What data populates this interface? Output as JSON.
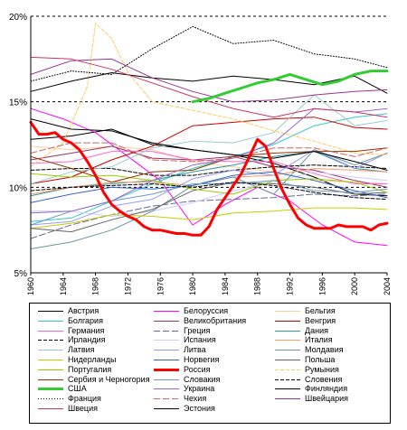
{
  "chart_data": {
    "type": "line",
    "title": "",
    "xlabel": "",
    "ylabel": "",
    "xlim": [
      1960,
      2004
    ],
    "ylim": [
      5,
      20
    ],
    "y_ticks": [
      "5%",
      "10%",
      "15%",
      "20%"
    ],
    "x_ticks": [
      "1960",
      "1964",
      "1968",
      "1972",
      "1976",
      "1980",
      "1984",
      "1988",
      "1992",
      "1996",
      "2000",
      "2004"
    ],
    "grid": "horizontal dashed at 10%, 15%, 20%",
    "legend_position": "bottom",
    "series": [
      {
        "name": "Австрия",
        "color": "#000000",
        "dash": "solid",
        "width": 1,
        "x": [
          1960,
          1965,
          1970,
          1975,
          1980,
          1985,
          1990,
          1995,
          2000,
          2004
        ],
        "y": [
          12.8,
          13.0,
          13.4,
          12.5,
          12.2,
          11.9,
          11.4,
          10.6,
          9.6,
          9.5
        ]
      },
      {
        "name": "Белоруссия",
        "color": "#ff00ff",
        "dash": "solid",
        "width": 1,
        "x": [
          1960,
          1964,
          1968,
          1972,
          1976,
          1980,
          1984,
          1988,
          1992,
          1996,
          2000,
          2004
        ],
        "y": [
          14.6,
          14.0,
          13.2,
          11.8,
          10.4,
          7.8,
          9.0,
          10.0,
          9.2,
          7.8,
          6.8,
          6.6
        ]
      },
      {
        "name": "Бельгия",
        "color": "#ffcc99",
        "dash": "solid",
        "width": 1,
        "x": [
          1960,
          1965,
          1970,
          1975,
          1980,
          1985,
          1990,
          1995,
          2000,
          2004
        ],
        "y": [
          12.4,
          12.2,
          12.4,
          12.2,
          11.5,
          11.2,
          10.9,
          10.4,
          10.3,
          10.2
        ]
      },
      {
        "name": "Болгария",
        "color": "#33cccc",
        "dash": "solid",
        "width": 1,
        "x": [
          1960,
          1965,
          1970,
          1975,
          1980,
          1985,
          1990,
          1995,
          2000,
          2004
        ],
        "y": [
          8.0,
          8.2,
          9.2,
          10.2,
          11.1,
          11.8,
          12.5,
          13.6,
          14.1,
          14.3
        ]
      },
      {
        "name": "Великобритания",
        "color": "#993366",
        "dash": "solid",
        "width": 1,
        "x": [
          1960,
          1965,
          1970,
          1975,
          1980,
          1985,
          1990,
          1995,
          2000,
          2004
        ],
        "y": [
          11.6,
          12.0,
          12.4,
          11.7,
          11.6,
          11.8,
          11.2,
          11.0,
          10.4,
          10.0
        ]
      },
      {
        "name": "Венгрия",
        "color": "#cc0000",
        "dash": "solid",
        "width": 1,
        "x": [
          1960,
          1965,
          1970,
          1975,
          1980,
          1985,
          1990,
          1995,
          2000,
          2004
        ],
        "y": [
          10.2,
          10.6,
          11.6,
          12.4,
          13.6,
          13.8,
          14.0,
          14.1,
          13.5,
          13.4
        ]
      },
      {
        "name": "Германия",
        "color": "#ff66cc",
        "dash": "solid",
        "width": 1,
        "x": [
          1960,
          1965,
          1970,
          1975,
          1980,
          1985,
          1990,
          1995,
          2000,
          2004
        ],
        "y": [
          11.4,
          11.5,
          12.1,
          12.1,
          11.6,
          11.5,
          11.5,
          10.8,
          10.2,
          10.2
        ]
      },
      {
        "name": "Греция",
        "color": "#666699",
        "dash": "longdash",
        "width": 1,
        "x": [
          1960,
          1965,
          1970,
          1975,
          1980,
          1985,
          1990,
          1995,
          2000,
          2004
        ],
        "y": [
          7.0,
          7.8,
          8.4,
          8.9,
          9.2,
          9.3,
          9.4,
          9.6,
          9.5,
          9.6
        ]
      },
      {
        "name": "Дания",
        "color": "#339999",
        "dash": "solid",
        "width": 1,
        "x": [
          1960,
          1965,
          1970,
          1975,
          1980,
          1985,
          1990,
          1995,
          2000,
          2004
        ],
        "y": [
          9.5,
          10.0,
          10.2,
          10.4,
          10.9,
          11.3,
          11.8,
          12.1,
          11.1,
          10.9
        ]
      },
      {
        "name": "Ирландия",
        "color": "#000000",
        "dash": "dashed",
        "width": 1,
        "x": [
          1960,
          1965,
          1970,
          1975,
          1980,
          1985,
          1990,
          1995,
          2000,
          2004
        ],
        "y": [
          11.0,
          11.1,
          11.1,
          10.7,
          10.7,
          11.0,
          11.2,
          11.3,
          11.2,
          11.1
        ]
      },
      {
        "name": "Испания",
        "color": "#ccccff",
        "dash": "solid",
        "width": 1,
        "x": [
          1960,
          1965,
          1970,
          1975,
          1980,
          1985,
          1990,
          1995,
          2000,
          2004
        ],
        "y": [
          8.6,
          8.6,
          8.3,
          8.6,
          9.1,
          9.8,
          10.3,
          10.9,
          10.6,
          10.4
        ]
      },
      {
        "name": "Италия",
        "color": "#ff9966",
        "dash": "solid",
        "width": 1,
        "x": [
          1960,
          1965,
          1970,
          1975,
          1980,
          1985,
          1990,
          1995,
          2000,
          2004
        ],
        "y": [
          9.6,
          10.0,
          10.3,
          10.3,
          10.1,
          10.6,
          10.7,
          11.1,
          11.0,
          10.9
        ]
      },
      {
        "name": "Латвия",
        "color": "#99cccc",
        "dash": "solid",
        "width": 1,
        "x": [
          1960,
          1965,
          1970,
          1975,
          1980,
          1985,
          1990,
          1995,
          2000,
          2004
        ],
        "y": [
          10.2,
          10.9,
          11.2,
          12.3,
          12.7,
          12.6,
          13.2,
          15.4,
          13.6,
          13.9
        ]
      },
      {
        "name": "Литва",
        "color": "#9999ff",
        "dash": "solid",
        "width": 1,
        "x": [
          1960,
          1965,
          1970,
          1975,
          1980,
          1985,
          1990,
          1995,
          2000,
          2004
        ],
        "y": [
          7.8,
          8.0,
          8.9,
          9.3,
          10.5,
          11.0,
          10.7,
          12.2,
          11.1,
          12.0
        ]
      },
      {
        "name": "Молдавия",
        "color": "#669999",
        "dash": "solid",
        "width": 1,
        "x": [
          1960,
          1965,
          1970,
          1975,
          1980,
          1985,
          1990,
          1995,
          2000,
          2004
        ],
        "y": [
          6.4,
          6.8,
          7.5,
          8.6,
          10.1,
          10.6,
          9.6,
          12.2,
          11.3,
          12.0
        ]
      },
      {
        "name": "Нидерланды",
        "color": "#cccc00",
        "dash": "solid",
        "width": 1,
        "x": [
          1960,
          1965,
          1970,
          1975,
          1980,
          1985,
          1990,
          1995,
          2000,
          2004
        ],
        "y": [
          7.6,
          7.9,
          8.4,
          8.3,
          8.1,
          8.5,
          8.6,
          8.8,
          8.8,
          8.7
        ]
      },
      {
        "name": "Норвегия",
        "color": "#3366cc",
        "dash": "solid",
        "width": 1,
        "x": [
          1960,
          1965,
          1970,
          1975,
          1980,
          1985,
          1990,
          1995,
          2000,
          2004
        ],
        "y": [
          9.1,
          9.6,
          10.0,
          9.9,
          10.1,
          10.7,
          10.9,
          10.4,
          9.8,
          9.4
        ]
      },
      {
        "name": "Польша",
        "color": "#666666",
        "dash": "solid",
        "width": 1,
        "x": [
          1960,
          1965,
          1970,
          1975,
          1980,
          1985,
          1990,
          1995,
          2000,
          2004
        ],
        "y": [
          7.6,
          7.4,
          8.1,
          8.7,
          9.8,
          10.3,
          10.2,
          10.0,
          9.6,
          9.7
        ]
      },
      {
        "name": "Португалия",
        "color": "#99cc00",
        "dash": "solid",
        "width": 1,
        "x": [
          1960,
          1965,
          1970,
          1975,
          1980,
          1985,
          1990,
          1995,
          2000,
          2004
        ],
        "y": [
          10.8,
          10.6,
          10.7,
          10.4,
          9.9,
          9.6,
          10.4,
          10.5,
          10.3,
          9.7
        ]
      },
      {
        "name": "Россия",
        "color": "#ff0000",
        "dash": "solid",
        "width": 3,
        "x": [
          1960,
          1961,
          1962,
          1963,
          1964,
          1965,
          1966,
          1967,
          1968,
          1969,
          1970,
          1971,
          1972,
          1973,
          1974,
          1975,
          1976,
          1977,
          1978,
          1979,
          1980,
          1981,
          1982,
          1983,
          1984,
          1985,
          1986,
          1987,
          1988,
          1989,
          1990,
          1991,
          1992,
          1993,
          1994,
          1995,
          1996,
          1997,
          1998,
          1999,
          2000,
          2001,
          2002,
          2003,
          2004
        ],
        "y": [
          13.8,
          13.1,
          13.1,
          13.2,
          12.8,
          12.6,
          12.2,
          11.5,
          10.7,
          9.7,
          9.0,
          8.6,
          8.3,
          8.1,
          7.7,
          7.5,
          7.5,
          7.4,
          7.3,
          7.3,
          7.2,
          7.2,
          7.7,
          8.7,
          9.4,
          10.1,
          10.8,
          11.8,
          12.8,
          12.4,
          11.1,
          9.9,
          9.0,
          8.2,
          7.8,
          7.6,
          7.6,
          7.6,
          7.8,
          7.7,
          7.7,
          7.7,
          7.5,
          7.8,
          7.9
        ]
      },
      {
        "name": "Румыния",
        "color": "#ffcc66",
        "dash": "dashed",
        "width": 1,
        "x": [
          1960,
          1964,
          1967,
          1968,
          1970,
          1972,
          1975,
          1980,
          1985,
          1990,
          1995,
          2000,
          2004
        ],
        "y": [
          11.2,
          12.6,
          15.9,
          19.6,
          18.7,
          16.7,
          15.0,
          14.5,
          14.0,
          13.3,
          12.7,
          12.0,
          11.9
        ]
      },
      {
        "name": "Сербия и Черногория",
        "color": "#993300",
        "dash": "solid",
        "width": 1,
        "x": [
          1960,
          1965,
          1970,
          1975,
          1980,
          1985,
          1990,
          1995,
          2000,
          2004
        ],
        "y": [
          11.8,
          11.1,
          10.3,
          10.9,
          11.0,
          11.8,
          12.0,
          12.1,
          12.1,
          12.3
        ]
      },
      {
        "name": "Словакия",
        "color": "#6699cc",
        "dash": "solid",
        "width": 1,
        "x": [
          1960,
          1965,
          1970,
          1975,
          1980,
          1985,
          1990,
          1995,
          2000,
          2004
        ],
        "y": [
          7.8,
          8.6,
          9.2,
          9.6,
          10.2,
          10.2,
          10.4,
          9.8,
          9.7,
          9.9
        ]
      },
      {
        "name": "Словения",
        "color": "#000000",
        "dash": "dashed",
        "width": 1,
        "x": [
          1960,
          1965,
          1970,
          1975,
          1980,
          1985,
          1990,
          1995,
          2000,
          2004
        ],
        "y": [
          9.8,
          10.0,
          10.1,
          10.2,
          10.0,
          10.3,
          10.1,
          9.7,
          9.4,
          9.3
        ]
      },
      {
        "name": "США",
        "color": "#33cc33",
        "dash": "solid",
        "width": 3,
        "x": [
          1980,
          1982,
          1984,
          1986,
          1988,
          1990,
          1992,
          1994,
          1996,
          1998,
          2000,
          2002,
          2004
        ],
        "y": [
          15.0,
          15.2,
          15.5,
          15.8,
          16.1,
          16.3,
          16.6,
          16.3,
          16.0,
          16.2,
          16.6,
          16.8,
          16.8
        ]
      },
      {
        "name": "Украина",
        "color": "#9966cc",
        "dash": "solid",
        "width": 1,
        "x": [
          1960,
          1965,
          1970,
          1975,
          1980,
          1985,
          1990,
          1995,
          2000,
          2004
        ],
        "y": [
          8.5,
          8.6,
          9.2,
          10.4,
          11.3,
          11.7,
          12.6,
          14.6,
          14.4,
          14.6
        ]
      },
      {
        "name": "Финляндия",
        "color": "#000000",
        "dash": "solid",
        "width": 1,
        "x": [
          1960,
          1965,
          1970,
          1975,
          1980,
          1985,
          1990,
          1995,
          2000,
          2004
        ],
        "y": [
          15.6,
          16.2,
          16.7,
          16.4,
          16.2,
          16.5,
          16.3,
          16.0,
          16.5,
          15.5
        ]
      },
      {
        "name": "Франция",
        "color": "#000000",
        "dash": "dotted",
        "width": 1,
        "x": [
          1960,
          1965,
          1970,
          1975,
          1980,
          1985,
          1990,
          1995,
          2000,
          2004
        ],
        "y": [
          16.2,
          16.8,
          16.6,
          18.1,
          19.4,
          18.4,
          18.6,
          17.8,
          17.5,
          17.0
        ]
      },
      {
        "name": "Чехия",
        "color": "#cc6666",
        "dash": "longdash",
        "width": 1,
        "x": [
          1960,
          1965,
          1970,
          1975,
          1980,
          1985,
          1990,
          1995,
          2000,
          2004
        ],
        "y": [
          12.0,
          12.6,
          12.6,
          11.6,
          11.5,
          11.7,
          12.3,
          12.3,
          11.8,
          12.3
        ]
      },
      {
        "name": "Швейцария",
        "color": "#993399",
        "dash": "solid",
        "width": 1,
        "x": [
          1960,
          1965,
          1970,
          1975,
          1980,
          1985,
          1990,
          1995,
          2000,
          2004
        ],
        "y": [
          16.6,
          17.4,
          17.5,
          16.4,
          15.6,
          15.0,
          15.1,
          15.4,
          15.6,
          15.7
        ]
      },
      {
        "name": "Швеция",
        "color": "#cc3366",
        "dash": "solid",
        "width": 1,
        "x": [
          1960,
          1965,
          1970,
          1975,
          1980,
          1985,
          1990,
          1995,
          2000,
          2004
        ],
        "y": [
          17.6,
          17.5,
          16.9,
          16.1,
          15.3,
          14.6,
          14.1,
          14.6,
          14.4,
          14.1
        ]
      },
      {
        "name": "Эстония",
        "color": "#000000",
        "dash": "solid",
        "width": 1,
        "x": [
          1960,
          1965,
          1970,
          1975,
          1980,
          1985,
          1990,
          1995,
          2000,
          2004
        ],
        "y": [
          14.0,
          13.4,
          13.3,
          12.6,
          12.2,
          11.9,
          11.7,
          12.1,
          11.5,
          11.0
        ]
      }
    ]
  }
}
